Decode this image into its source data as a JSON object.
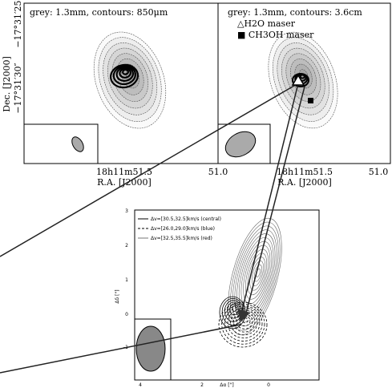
{
  "top_left": {
    "label": "grey: 1.3mm, contours: 850μm",
    "x_ticks": [
      "18h11m51.5",
      "51.0"
    ],
    "x_label": "R.A. [J2000]"
  },
  "top_right": {
    "label": "grey: 1.3mm, contours: 3.6cm",
    "legend": [
      "△H2O maser",
      "■ CH3OH maser"
    ],
    "x_ticks": [
      "18h11m51.5",
      "51.0"
    ],
    "x_label": "R.A. [J2000]"
  },
  "y_axis": {
    "label": "Dec. [J2000]",
    "ticks": [
      "−17°31′25″",
      "−17°31′30″"
    ]
  },
  "bottom": {
    "legend": [
      "Δv=[30.5,32.5]km/s (central)",
      "Δv=[26.0,29.0]km/s (blue)",
      "Δv=[32.5,35.5]km/s (red)"
    ],
    "y_ticks": [
      "3",
      "2",
      "1",
      "0",
      "-1"
    ],
    "x_ticks": [
      "4",
      "2",
      "0"
    ],
    "y_label": "Δδ [\"]",
    "x_label": "Δα [\"]"
  }
}
